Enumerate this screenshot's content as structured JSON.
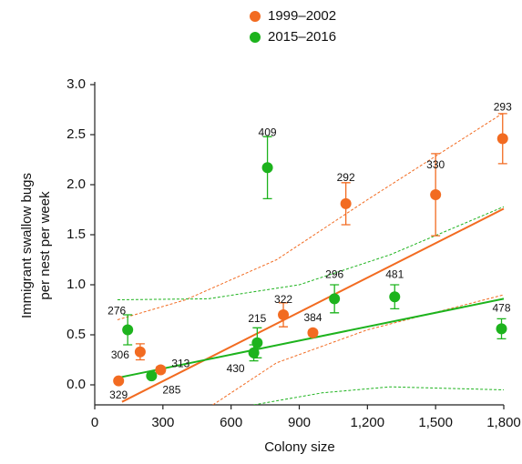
{
  "chart_data": {
    "type": "scatter",
    "xlabel": "Colony size",
    "ylabel": [
      "Immigrant swallow bugs",
      "per nest per week"
    ],
    "xlim": [
      0,
      1800
    ],
    "ylim": [
      -0.2,
      3.0
    ],
    "xticks": [
      0,
      300,
      600,
      900,
      {
        "value": 1200,
        "label": "1,200"
      },
      {
        "value": 1500,
        "label": "1,500"
      },
      {
        "value": 1800,
        "label": "1,800"
      }
    ],
    "yticks": [
      {
        "value": 0,
        "label": "0.0"
      },
      0.5,
      {
        "value": 1,
        "label": "1.0"
      },
      1.5,
      {
        "value": 2,
        "label": "2.0"
      },
      2.5,
      {
        "value": 3,
        "label": "3.0"
      }
    ],
    "series": [
      {
        "name": "1999–2002",
        "color": "#f26b21",
        "x": [
          105,
          200,
          290,
          830,
          960,
          1105,
          1500,
          1795
        ],
        "values": [
          0.04,
          0.33,
          0.15,
          0.7,
          0.52,
          1.81,
          1.9,
          2.46
        ],
        "errors": [
          0.02,
          0.08,
          0.03,
          0.12,
          0.03,
          0.21,
          0.41,
          0.25
        ],
        "point_labels": [
          "329",
          "306",
          "313",
          "322",
          "384",
          "292",
          "330",
          "293"
        ],
        "fit": {
          "x": [
            120,
            1800
          ],
          "y": [
            -0.17,
            1.76
          ]
        },
        "band_upper": {
          "x": [
            100,
            400,
            800,
            1200,
            1800
          ],
          "y": [
            0.65,
            0.85,
            1.25,
            1.85,
            2.72
          ]
        },
        "band_lower": {
          "x": [
            520,
            800,
            1200,
            1800
          ],
          "y": [
            -0.2,
            0.22,
            0.55,
            0.9
          ]
        }
      },
      {
        "name": "2015–2016",
        "color": "#1db31d",
        "x": [
          145,
          250,
          700,
          715,
          760,
          1055,
          1320,
          1790
        ],
        "values": [
          0.55,
          0.09,
          0.32,
          0.42,
          2.17,
          0.86,
          0.88,
          0.56
        ],
        "errors": [
          0.15,
          0.02,
          0.08,
          0.15,
          0.31,
          0.14,
          0.12,
          0.1
        ],
        "point_labels": [
          "276",
          "285",
          "430",
          "215",
          "409",
          "296",
          "481",
          "478"
        ],
        "fit": {
          "x": [
            100,
            1800
          ],
          "y": [
            0.07,
            0.86
          ]
        },
        "band_upper": {
          "x": [
            100,
            500,
            900,
            1300,
            1800
          ],
          "y": [
            0.85,
            0.86,
            1.0,
            1.3,
            1.78
          ]
        },
        "band_lower": {
          "x": [
            700,
            1000,
            1300,
            1800
          ],
          "y": [
            -0.2,
            -0.08,
            -0.02,
            -0.05
          ]
        }
      }
    ]
  }
}
